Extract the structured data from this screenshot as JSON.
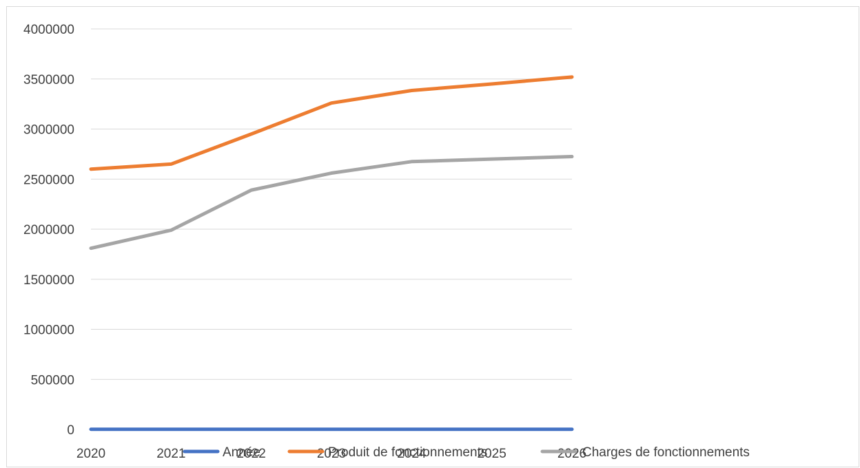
{
  "chart_data": {
    "type": "line",
    "title": "",
    "xlabel": "",
    "ylabel": "",
    "x": [
      "2020",
      "2021",
      "2022",
      "2023",
      "2024",
      "2025",
      "2026"
    ],
    "y_ticks": [
      "0",
      "500000",
      "1000000",
      "1500000",
      "2000000",
      "2500000",
      "3000000",
      "3500000",
      "4000000"
    ],
    "ylim": [
      0,
      4000000
    ],
    "grid": true,
    "legend_position": "bottom",
    "series": [
      {
        "name": "Année",
        "color": "#4472c4",
        "values": [
          2020,
          2021,
          2022,
          2023,
          2024,
          2025,
          2026
        ]
      },
      {
        "name": "Produit de fonctionnements",
        "color": "#ed7d31",
        "values": [
          2600000,
          2650000,
          2950000,
          3260000,
          3385000,
          3450000,
          3520000
        ]
      },
      {
        "name": "Charges de fonctionnements",
        "color": "#a5a5a5",
        "values": [
          1810000,
          1990000,
          2390000,
          2560000,
          2675000,
          2700000,
          2725000
        ]
      }
    ]
  }
}
